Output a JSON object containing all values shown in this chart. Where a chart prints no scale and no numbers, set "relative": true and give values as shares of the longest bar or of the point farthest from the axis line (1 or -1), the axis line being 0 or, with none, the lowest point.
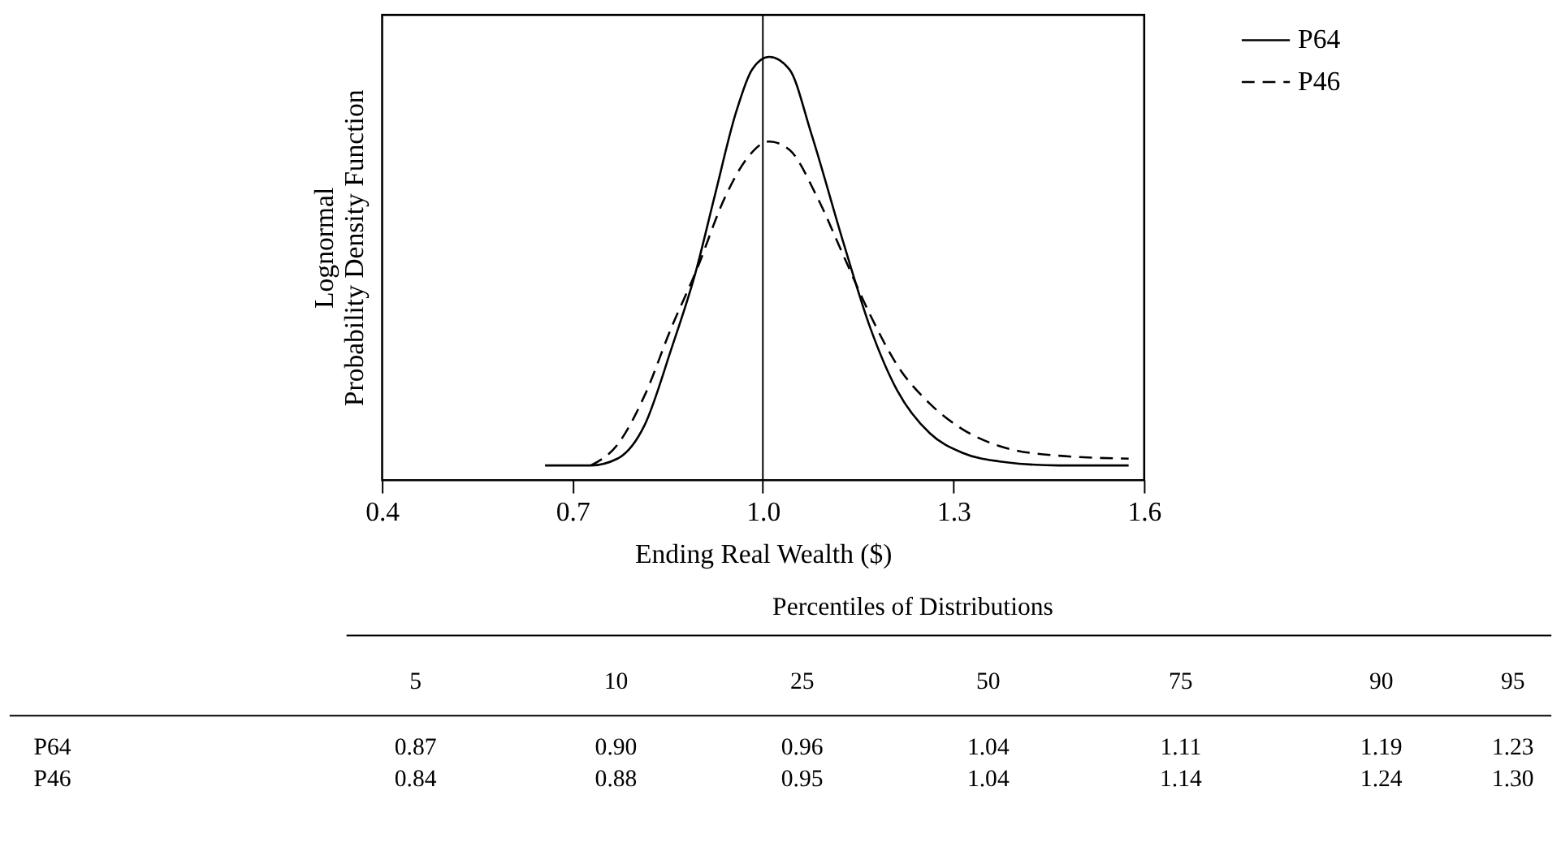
{
  "chart_data": {
    "type": "line",
    "relative": true,
    "xlabel": "Ending Real Wealth ($)",
    "ylabel": "Lognormal\nProbability Density Function",
    "xlim": [
      0.4,
      1.6
    ],
    "xticks": [
      0.4,
      0.7,
      {
        "value": 1.0,
        "label": "1.0"
      },
      1.3,
      1.6
    ],
    "grid": false,
    "legend": "right",
    "marker": "none",
    "ref_lines": [
      {
        "axis": "x",
        "value": 1.0,
        "color": "#000000"
      }
    ],
    "series": [
      {
        "name": "P64",
        "color": "#000000",
        "line_style": "solid",
        "x": [
          0.657,
          0.729,
          0.771,
          0.814,
          0.856,
          0.894,
          0.924,
          0.958,
          0.983,
          1.01,
          1.042,
          1.076,
          1.127,
          1.169,
          1.212,
          1.263,
          1.314,
          1.381,
          1.466,
          1.576
        ],
        "values": [
          0.034,
          0.034,
          0.05,
          0.13,
          0.31,
          0.49,
          0.67,
          0.87,
          0.97,
          1.0,
          0.97,
          0.82,
          0.56,
          0.36,
          0.21,
          0.11,
          0.064,
          0.042,
          0.034,
          0.034
        ]
      },
      {
        "name": "P46",
        "color": "#000000",
        "line_style": "dashed",
        "x": [
          0.729,
          0.771,
          0.814,
          0.856,
          0.894,
          0.941,
          0.975,
          1.01,
          1.042,
          1.085,
          1.127,
          1.169,
          1.212,
          1.263,
          1.314,
          1.381,
          1.466,
          1.576
        ],
        "values": [
          0.034,
          0.083,
          0.2,
          0.36,
          0.49,
          0.67,
          0.76,
          0.8,
          0.78,
          0.67,
          0.53,
          0.39,
          0.27,
          0.18,
          0.12,
          0.076,
          0.057,
          0.05
        ]
      }
    ],
    "annotations": [
      "Percentiles of Distributions",
      "5",
      "10",
      "25",
      "50",
      "75",
      "90",
      "95",
      "P64",
      "0.87",
      "0.90",
      "0.96",
      "1.04",
      "1.11",
      "1.19",
      "1.23",
      "P46",
      "0.84",
      "0.88",
      "0.95",
      "1.04",
      "1.14",
      "1.24",
      "1.30"
    ]
  }
}
